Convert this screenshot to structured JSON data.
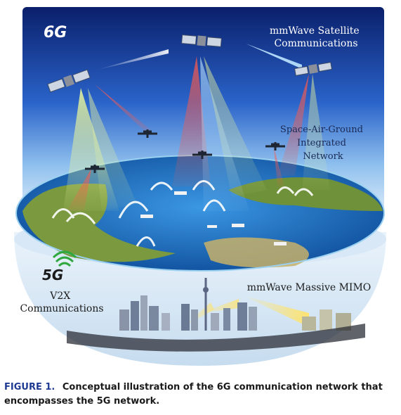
{
  "figure": {
    "label_6g": "6G",
    "label_5g": "5G",
    "satellite_label": [
      "mmWave Satellite",
      "Communications"
    ],
    "sagin_label": [
      "Space-Air-Ground",
      "Integrated",
      "Network"
    ],
    "v2x_label": [
      "V2X",
      "Communications"
    ],
    "mimo_label": "mmWave Massive MIMO",
    "colors": {
      "sky_top": "#0a1f6b",
      "sky_mid": "#2a63c9",
      "sky_low": "#cfe3f7",
      "ocean": "#1d73c5",
      "land": "#6e8f3b",
      "beam_red": "#e0413a",
      "beam_green": "#d9ec7a",
      "beam_blue": "#9ad1ff",
      "beam_yellow": "#f5d04a",
      "signal_green": "#2fa83e"
    }
  },
  "caption": {
    "label": "FIGURE 1.",
    "text": "Conceptual illustration of the 6G communication network that encompasses the 5G network."
  }
}
